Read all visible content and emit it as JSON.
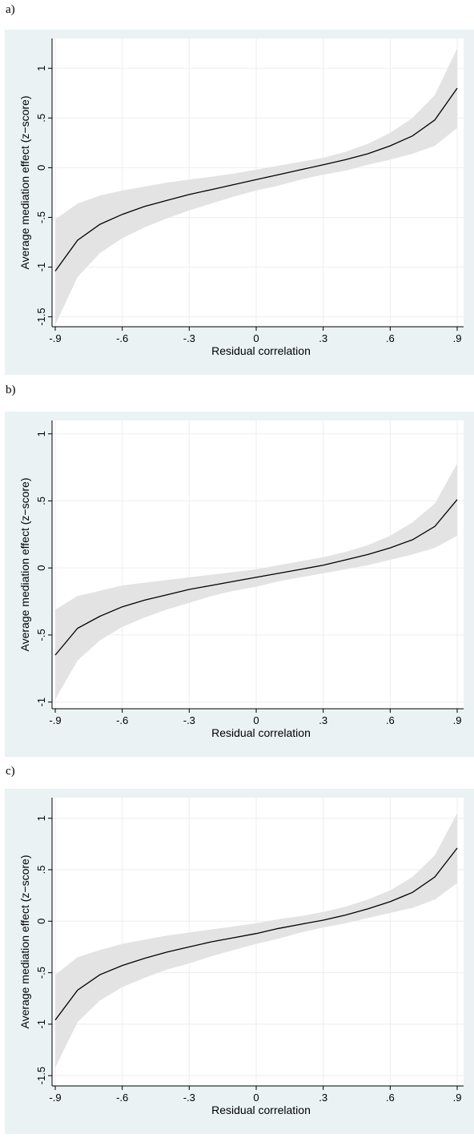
{
  "panel_labels": [
    "a)",
    "b)",
    "c)"
  ],
  "chart_data": [
    {
      "type": "line",
      "xlabel": "Residual correlation",
      "ylabel": "Average mediation effect (z−score)",
      "xlim": [
        -0.9,
        0.9
      ],
      "ylim": [
        -1.6,
        1.3
      ],
      "x_ticks": [
        -0.9,
        -0.6,
        -0.3,
        0,
        0.3,
        0.6,
        0.9
      ],
      "x_tick_labels": [
        "-.9",
        "-.6",
        "-.3",
        "0",
        ".3",
        ".6",
        ".9"
      ],
      "y_ticks": [
        -1.5,
        -1,
        -0.5,
        0,
        0.5,
        1
      ],
      "y_tick_labels": [
        "-1.5",
        "-1",
        "-.5",
        "0",
        ".5",
        "1"
      ],
      "grid": true,
      "x": [
        -0.9,
        -0.8,
        -0.7,
        -0.6,
        -0.5,
        -0.4,
        -0.3,
        -0.2,
        -0.1,
        0,
        0.1,
        0.2,
        0.3,
        0.4,
        0.5,
        0.6,
        0.7,
        0.8,
        0.9
      ],
      "estimate": [
        -1.04,
        -0.73,
        -0.57,
        -0.47,
        -0.39,
        -0.33,
        -0.27,
        -0.22,
        -0.17,
        -0.12,
        -0.07,
        -0.02,
        0.03,
        0.08,
        0.14,
        0.22,
        0.32,
        0.48,
        0.8
      ],
      "ci_lower": [
        -1.58,
        -1.1,
        -0.86,
        -0.71,
        -0.6,
        -0.51,
        -0.43,
        -0.36,
        -0.29,
        -0.23,
        -0.18,
        -0.12,
        -0.07,
        -0.03,
        0.03,
        0.08,
        0.14,
        0.22,
        0.4
      ],
      "ci_upper": [
        -0.52,
        -0.36,
        -0.28,
        -0.23,
        -0.19,
        -0.15,
        -0.12,
        -0.09,
        -0.06,
        -0.02,
        0.02,
        0.06,
        0.1,
        0.16,
        0.24,
        0.35,
        0.5,
        0.73,
        1.2
      ]
    },
    {
      "type": "line",
      "xlabel": "Residual correlation",
      "ylabel": "Average mediation effect (z−score)",
      "xlim": [
        -0.9,
        0.9
      ],
      "ylim": [
        -1.05,
        1.1
      ],
      "x_ticks": [
        -0.9,
        -0.6,
        -0.3,
        0,
        0.3,
        0.6,
        0.9
      ],
      "x_tick_labels": [
        "-.9",
        "-.6",
        "-.3",
        "0",
        ".3",
        ".6",
        ".9"
      ],
      "y_ticks": [
        -1,
        -0.5,
        0,
        0.5,
        1
      ],
      "y_tick_labels": [
        "-1",
        "-.5",
        "0",
        ".5",
        "1"
      ],
      "grid": true,
      "x": [
        -0.9,
        -0.8,
        -0.7,
        -0.6,
        -0.5,
        -0.4,
        -0.3,
        -0.2,
        -0.1,
        0,
        0.1,
        0.2,
        0.3,
        0.4,
        0.5,
        0.6,
        0.7,
        0.8,
        0.9
      ],
      "estimate": [
        -0.65,
        -0.45,
        -0.36,
        -0.29,
        -0.24,
        -0.2,
        -0.16,
        -0.13,
        -0.1,
        -0.07,
        -0.04,
        -0.01,
        0.02,
        0.06,
        0.1,
        0.15,
        0.21,
        0.31,
        0.51
      ],
      "ci_lower": [
        -0.98,
        -0.69,
        -0.54,
        -0.44,
        -0.37,
        -0.31,
        -0.26,
        -0.21,
        -0.17,
        -0.14,
        -0.1,
        -0.07,
        -0.04,
        -0.01,
        0.02,
        0.06,
        0.1,
        0.15,
        0.24
      ],
      "ci_upper": [
        -0.31,
        -0.21,
        -0.17,
        -0.13,
        -0.11,
        -0.09,
        -0.07,
        -0.05,
        -0.03,
        -0.01,
        0.02,
        0.05,
        0.08,
        0.12,
        0.17,
        0.24,
        0.34,
        0.48,
        0.78
      ]
    },
    {
      "type": "line",
      "xlabel": "Residual correlation",
      "ylabel": "Average mediation effect (z−score)",
      "xlim": [
        -0.9,
        0.9
      ],
      "ylim": [
        -1.6,
        1.2
      ],
      "x_ticks": [
        -0.9,
        -0.6,
        -0.3,
        0,
        0.3,
        0.6,
        0.9
      ],
      "x_tick_labels": [
        "-.9",
        "-.6",
        "-.3",
        "0",
        ".3",
        ".6",
        ".9"
      ],
      "y_ticks": [
        -1.5,
        -1,
        -0.5,
        0,
        0.5,
        1
      ],
      "y_tick_labels": [
        "-1.5",
        "-1",
        "-.5",
        "0",
        ".5",
        "1"
      ],
      "grid": true,
      "x": [
        -0.9,
        -0.8,
        -0.7,
        -0.6,
        -0.5,
        -0.4,
        -0.3,
        -0.2,
        -0.1,
        0,
        0.1,
        0.2,
        0.3,
        0.4,
        0.5,
        0.6,
        0.7,
        0.8,
        0.9
      ],
      "estimate": [
        -0.96,
        -0.67,
        -0.52,
        -0.43,
        -0.36,
        -0.3,
        -0.25,
        -0.2,
        -0.16,
        -0.12,
        -0.07,
        -0.03,
        0.01,
        0.06,
        0.12,
        0.19,
        0.28,
        0.43,
        0.71
      ],
      "ci_lower": [
        -1.42,
        -0.98,
        -0.77,
        -0.64,
        -0.55,
        -0.47,
        -0.41,
        -0.34,
        -0.28,
        -0.22,
        -0.17,
        -0.11,
        -0.06,
        -0.02,
        0.03,
        0.08,
        0.13,
        0.21,
        0.37
      ],
      "ci_upper": [
        -0.52,
        -0.35,
        -0.28,
        -0.22,
        -0.18,
        -0.14,
        -0.11,
        -0.08,
        -0.05,
        -0.02,
        0.02,
        0.05,
        0.09,
        0.14,
        0.21,
        0.3,
        0.43,
        0.64,
        1.05
      ]
    }
  ]
}
